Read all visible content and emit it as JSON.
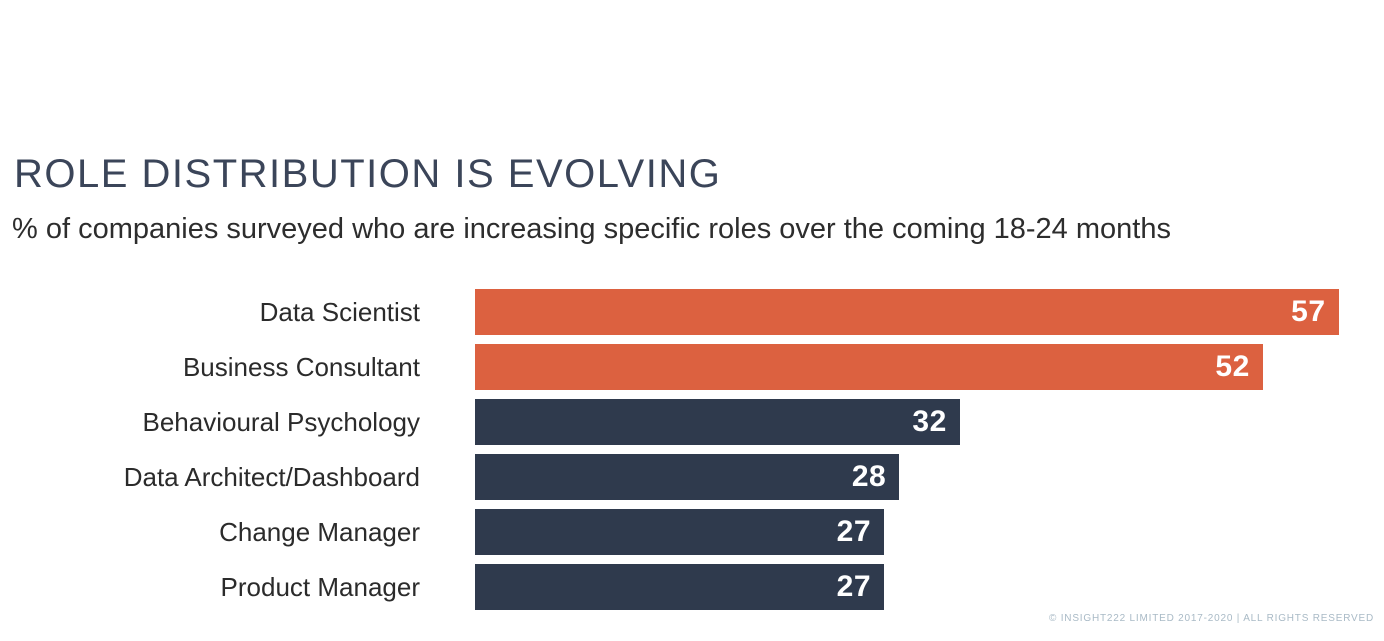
{
  "header": {
    "title": "ROLE DISTRIBUTION IS EVOLVING",
    "subtitle": "% of companies surveyed who are increasing specific roles over the coming 18-24 months"
  },
  "chart_data": {
    "type": "bar",
    "orientation": "horizontal",
    "title": "ROLE DISTRIBUTION IS EVOLVING",
    "subtitle": "% of companies surveyed who are increasing specific roles over the coming 18-24 months",
    "categories": [
      "Data Scientist",
      "Business Consultant",
      "Behavioural Psychology",
      "Data Architect/Dashboard",
      "Change Manager",
      "Product Manager"
    ],
    "values": [
      57,
      52,
      32,
      28,
      27,
      27
    ],
    "bar_colors": [
      "#dc6140",
      "#dc6140",
      "#2f3a4d",
      "#2f3a4d",
      "#2f3a4d",
      "#2f3a4d"
    ],
    "value_label_position": "inside-end",
    "value_label_color": "#ffffff",
    "xlim": [
      0,
      60
    ],
    "grid": false,
    "legend": false,
    "axis_ticks": false
  },
  "colors": {
    "accent_orange": "#dc6140",
    "navy": "#2f3a4d",
    "title_text": "#3b4559",
    "subtitle_text": "#2d2d2d",
    "category_text": "#2b2b2b",
    "footer_text": "#a9bac6",
    "background": "#ffffff"
  },
  "footer": {
    "copyright": "© INSIGHT222 LIMITED 2017-2020 | ALL RIGHTS RESERVED"
  }
}
